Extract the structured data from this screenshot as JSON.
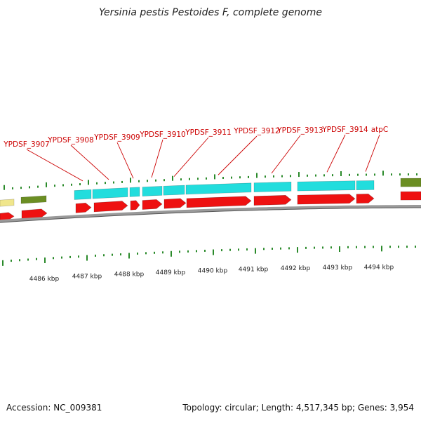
{
  "title": "Yersinia pestis Pestoides F, complete genome",
  "footer": {
    "accession": "Accession: NC_009381",
    "topology": "Topology: circular; Length: 4,517,345 bp; Genes: 3,954"
  },
  "colors": {
    "cds": "#ee1111",
    "gene": "#22dddd",
    "olive": "#6b8e23",
    "khaki": "#f0e68c",
    "backbone": "#888888",
    "tick": "#2a8a2a",
    "label": "#cc0000"
  },
  "scale_labels": [
    "4486 kbp",
    "4487 kbp",
    "4488 kbp",
    "4489 kbp",
    "4490 kbp",
    "4491 kbp",
    "4492 kbp",
    "4493 kbp",
    "4494 kbp"
  ],
  "gene_labels": [
    "YPDSF_3907",
    "YPDSF_3908",
    "YPDSF_3909",
    "YPDSF_3910",
    "YPDSF_3911",
    "YPDSF_3912",
    "YPDSF_3913",
    "YPDSF_3914",
    "atpC"
  ]
}
